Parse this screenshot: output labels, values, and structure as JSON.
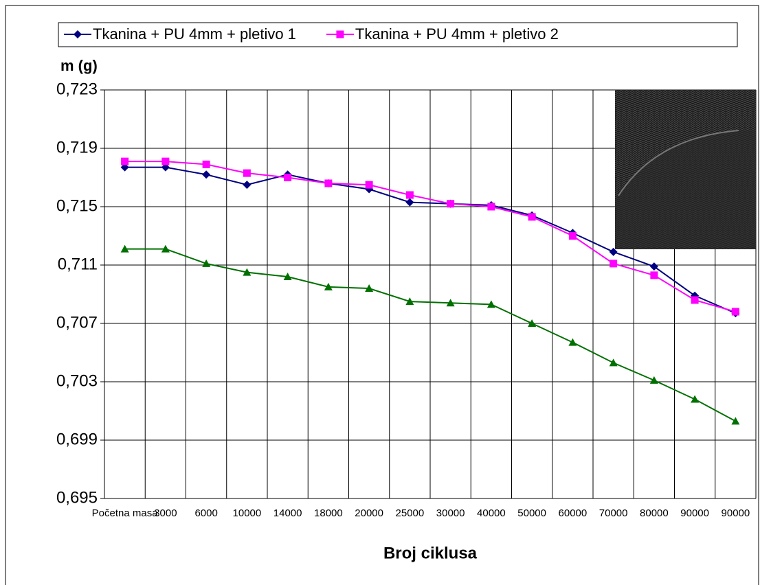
{
  "chart_data": {
    "type": "line",
    "y_label": "m (g)",
    "x_label": "Broj ciklusa",
    "categories": [
      "Početna masa",
      "3000",
      "6000",
      "10000",
      "14000",
      "18000",
      "20000",
      "25000",
      "30000",
      "40000",
      "50000",
      "60000",
      "70000",
      "80000",
      "90000",
      "90000"
    ],
    "series": [
      {
        "name": "Tkanina + PU 4mm + pletivo 1",
        "color": "#000080",
        "marker": "diamond",
        "values": [
          0.7177,
          0.7177,
          0.7172,
          0.7165,
          0.7172,
          0.7166,
          0.7162,
          0.7153,
          0.7152,
          0.7151,
          0.7144,
          0.7132,
          0.7119,
          0.7109,
          0.7089,
          0.7077
        ]
      },
      {
        "name": "Tkanina + PU 4mm + pletivo 2",
        "color": "#ff00ff",
        "marker": "square",
        "values": [
          0.7181,
          0.7181,
          0.7179,
          0.7173,
          0.717,
          0.7166,
          0.7165,
          0.7158,
          0.7152,
          0.715,
          0.7143,
          0.713,
          0.7111,
          0.7103,
          0.7086,
          0.7078
        ]
      },
      {
        "color": "#007000",
        "marker": "triangle",
        "values": [
          0.7121,
          0.7121,
          0.7111,
          0.7105,
          0.7102,
          0.7095,
          0.7094,
          0.7085,
          0.7084,
          0.7083,
          0.707,
          0.7057,
          0.7043,
          0.7031,
          0.7018,
          0.7003
        ]
      }
    ],
    "ylim": [
      0.695,
      0.723
    ],
    "yticks": [
      {
        "value": 0.695,
        "label": "0,695"
      },
      {
        "value": 0.699,
        "label": "0,699"
      },
      {
        "value": 0.703,
        "label": "0,703"
      },
      {
        "value": 0.707,
        "label": "0,707"
      },
      {
        "value": 0.711,
        "label": "0,711"
      },
      {
        "value": 0.715,
        "label": "0,715"
      },
      {
        "value": 0.719,
        "label": "0,719"
      },
      {
        "value": 0.723,
        "label": "0,723"
      }
    ],
    "grid": true,
    "legend": "top"
  }
}
